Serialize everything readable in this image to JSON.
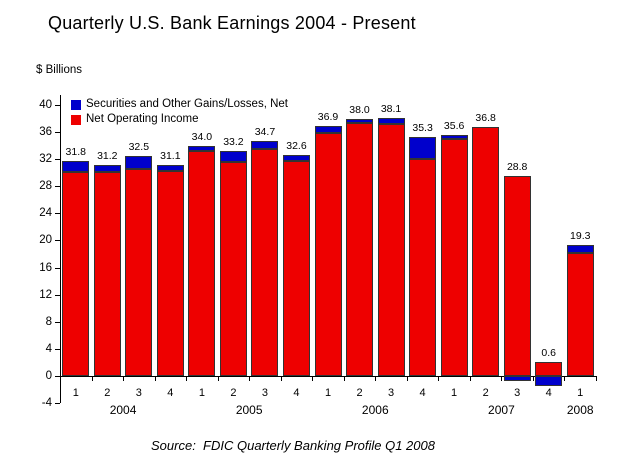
{
  "title": "Quarterly U.S. Bank Earnings 2004 - Present",
  "y_axis_label": "$ Billions",
  "source": "Source:  FDIC Quarterly Banking Profile Q1 2008",
  "legend": [
    {
      "label": "Securities and Other Gains/Losses, Net",
      "color": "#0000CC"
    },
    {
      "label": "Net Operating Income",
      "color": "#EE0000"
    }
  ],
  "colors": {
    "securities": "#0000CC",
    "operating": "#EE0000",
    "axis": "#000000"
  },
  "chart_data": {
    "type": "bar",
    "stacked": true,
    "title": "Quarterly U.S. Bank Earnings 2004 - Present",
    "ylabel": "$ Billions",
    "xlabel": "",
    "ylim": [
      -4,
      40
    ],
    "y_ticks": [
      -4,
      0,
      4,
      8,
      12,
      16,
      20,
      24,
      28,
      32,
      36,
      40
    ],
    "grid": false,
    "legend_position": "top-left-inside",
    "categories": [
      "2004 Q1",
      "2004 Q2",
      "2004 Q3",
      "2004 Q4",
      "2005 Q1",
      "2005 Q2",
      "2005 Q3",
      "2005 Q4",
      "2006 Q1",
      "2006 Q2",
      "2006 Q3",
      "2006 Q4",
      "2007 Q1",
      "2007 Q2",
      "2007 Q3",
      "2007 Q4",
      "2008 Q1"
    ],
    "quarter_labels": [
      "1",
      "2",
      "3",
      "4",
      "1",
      "2",
      "3",
      "4",
      "1",
      "2",
      "3",
      "4",
      "1",
      "2",
      "3",
      "4",
      "1"
    ],
    "year_groups": [
      {
        "label": "2004",
        "start": 0,
        "count": 4
      },
      {
        "label": "2005",
        "start": 4,
        "count": 4
      },
      {
        "label": "2006",
        "start": 8,
        "count": 4
      },
      {
        "label": "2007",
        "start": 12,
        "count": 4
      },
      {
        "label": "2008",
        "start": 16,
        "count": 1
      }
    ],
    "series": [
      {
        "name": "Net Operating Income",
        "color": "#EE0000",
        "values": [
          30.1,
          30.1,
          30.6,
          30.3,
          33.2,
          31.6,
          33.5,
          31.8,
          35.9,
          37.3,
          37.2,
          32.0,
          35.0,
          36.8,
          29.5,
          2.1,
          18.2
        ]
      },
      {
        "name": "Securities and Other Gains/Losses, Net",
        "color": "#0000CC",
        "values": [
          1.7,
          1.1,
          1.9,
          0.8,
          0.8,
          1.6,
          1.2,
          0.8,
          1.0,
          0.7,
          0.9,
          3.3,
          0.6,
          0.0,
          -0.7,
          -1.5,
          1.1
        ]
      }
    ],
    "totals": [
      31.8,
      31.2,
      32.5,
      31.1,
      34.0,
      33.2,
      34.7,
      32.6,
      36.9,
      38.0,
      38.1,
      35.3,
      35.6,
      36.8,
      28.8,
      0.6,
      19.3
    ],
    "total_labels": [
      "31.8",
      "31.2",
      "32.5",
      "31.1",
      "34.0",
      "33.2",
      "34.7",
      "32.6",
      "36.9",
      "38.0",
      "38.1",
      "35.3",
      "35.6",
      "36.8",
      "28.8",
      "0.6",
      "19.3"
    ]
  }
}
